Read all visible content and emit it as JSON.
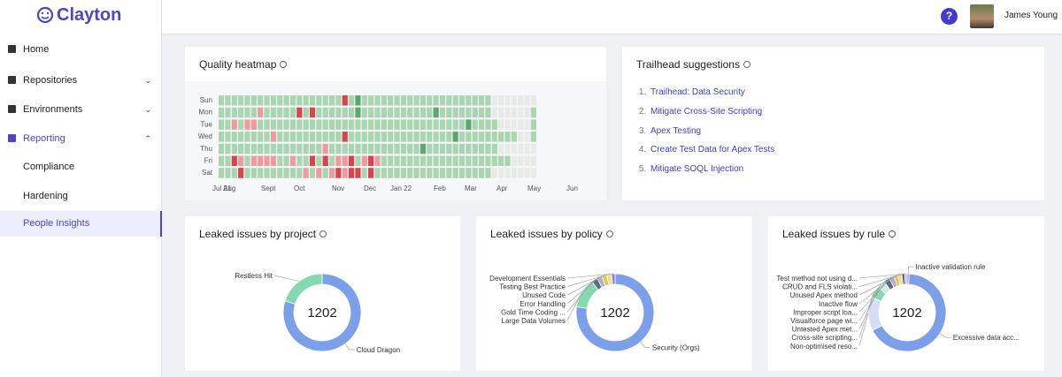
{
  "sidebar": {
    "logo": "Clayton",
    "nav": [
      {
        "label": "Home"
      },
      {
        "label": "Repositories"
      },
      {
        "label": "Environments"
      },
      {
        "label": "Reporting",
        "children": [
          "Compliance",
          "Hardening",
          "People Insights"
        ]
      }
    ]
  },
  "header": {
    "help": "?",
    "user": "James Young"
  },
  "heatmap": {
    "title": "Quality heatmap",
    "days": [
      "Sun",
      "Mon",
      "Tue",
      "Wed",
      "Thu",
      "Fri",
      "Sat"
    ],
    "months": [
      "Jul 21",
      "Aug",
      "Sept",
      "Oct",
      "Nov",
      "Dec",
      "Jan 22",
      "Feb",
      "Mar",
      "Apr",
      "May",
      "Jun"
    ],
    "color_scale": {
      "-2": "#d9434b",
      "-1": "#ef9a9c",
      "0": "#e8eae8",
      "1": "#a9d6b1",
      "2": "#5ba86b"
    },
    "rows": [
      [
        1,
        1,
        1,
        1,
        1,
        1,
        1,
        1,
        1,
        1,
        1,
        1,
        1,
        1,
        1,
        1,
        1,
        1,
        1,
        -2,
        1,
        2,
        1,
        1,
        1,
        1,
        1,
        1,
        1,
        1,
        1,
        1,
        1,
        1,
        1,
        1,
        1,
        1,
        1,
        1,
        1,
        1,
        0,
        0,
        0,
        0,
        0,
        0,
        0
      ],
      [
        1,
        1,
        1,
        1,
        1,
        1,
        -1,
        1,
        1,
        1,
        1,
        1,
        -2,
        1,
        -2,
        1,
        1,
        1,
        1,
        1,
        1,
        2,
        1,
        1,
        1,
        1,
        1,
        1,
        1,
        1,
        1,
        1,
        1,
        2,
        1,
        1,
        1,
        1,
        1,
        1,
        1,
        1,
        0,
        0,
        0,
        0,
        0,
        0,
        1
      ],
      [
        1,
        1,
        -1,
        1,
        -1,
        -1,
        1,
        1,
        1,
        1,
        1,
        1,
        1,
        1,
        1,
        1,
        1,
        1,
        1,
        1,
        1,
        1,
        1,
        1,
        1,
        1,
        1,
        1,
        1,
        1,
        1,
        1,
        1,
        1,
        1,
        1,
        1,
        1,
        2,
        1,
        1,
        1,
        1,
        0,
        0,
        0,
        0,
        0,
        1
      ],
      [
        1,
        1,
        1,
        1,
        1,
        1,
        1,
        1,
        -1,
        1,
        1,
        1,
        1,
        1,
        1,
        1,
        1,
        1,
        1,
        -2,
        1,
        1,
        1,
        1,
        1,
        1,
        1,
        1,
        1,
        1,
        1,
        1,
        1,
        1,
        1,
        1,
        2,
        1,
        1,
        1,
        1,
        1,
        1,
        1,
        1,
        1,
        0,
        0,
        1
      ],
      [
        1,
        1,
        1,
        1,
        1,
        1,
        1,
        1,
        1,
        1,
        1,
        1,
        1,
        1,
        1,
        1,
        -1,
        1,
        1,
        1,
        1,
        1,
        1,
        1,
        1,
        1,
        1,
        1,
        1,
        1,
        1,
        2,
        1,
        1,
        1,
        1,
        1,
        1,
        1,
        1,
        1,
        1,
        1,
        0,
        0,
        0,
        0,
        0,
        0
      ],
      [
        1,
        1,
        -2,
        -1,
        1,
        -1,
        -1,
        -1,
        -1,
        1,
        1,
        -1,
        1,
        1,
        -2,
        1,
        -2,
        1,
        -1,
        -1,
        -2,
        1,
        -1,
        -2,
        -1,
        1,
        1,
        1,
        1,
        1,
        1,
        1,
        1,
        1,
        1,
        1,
        1,
        1,
        1,
        1,
        1,
        1,
        1,
        1,
        1,
        0,
        0,
        0,
        0
      ],
      [
        1,
        1,
        1,
        -2,
        1,
        1,
        1,
        1,
        1,
        1,
        1,
        1,
        1,
        -1,
        1,
        -1,
        1,
        -1,
        -2,
        -1,
        -2,
        -2,
        1,
        -2,
        1,
        1,
        1,
        1,
        1,
        1,
        1,
        1,
        1,
        1,
        1,
        1,
        1,
        1,
        1,
        1,
        1,
        1,
        0,
        0,
        0,
        0,
        0,
        0,
        0
      ]
    ]
  },
  "trailhead": {
    "title": "Trailhead suggestions",
    "items": [
      "Trailhead: Data Security",
      "Mitigate Cross-Site Scripting",
      "Apex Testing",
      "Create Test Data for Apex Tests",
      "Mitigate SOQL Injection"
    ]
  },
  "donuts": [
    {
      "type": "pie",
      "title": "Leaked issues by project",
      "total": 1202,
      "categories": [
        "Cloud Dragon",
        "Restless Hit"
      ],
      "values": [
        960,
        242
      ],
      "colors": [
        "#7b9fe9",
        "#84d9b0"
      ]
    },
    {
      "type": "pie",
      "title": "Leaked issues by policy",
      "total": 1202,
      "categories": [
        "Security (Orgs)",
        "Large Data Volumes",
        "Gold Time Coding ...",
        "Error Handling",
        "Unused Code",
        "Testing Best Practice",
        "Development Essentials"
      ],
      "values": [
        930,
        150,
        30,
        25,
        25,
        25,
        17
      ],
      "colors": [
        "#7b9fe9",
        "#84d9b0",
        "#5c6886",
        "#a9b3c9",
        "#e9c25c",
        "#f2dc94",
        "#8a7fe2"
      ]
    },
    {
      "type": "pie",
      "title": "Leaked issues by rule",
      "total": 1202,
      "categories": [
        "Inactive validation rule",
        "Excessive data acc...",
        "Non-optimised reso...",
        "Cross-site scripting...",
        "Untested Apex met...",
        "Visualforce page wi...",
        "Improper script loa...",
        "Inactive flow",
        "Unused Apex method",
        "CRUD and FLS violati...",
        "Test method not using d..."
      ],
      "values": [
        10,
        800,
        170,
        60,
        40,
        30,
        25,
        20,
        20,
        15,
        12
      ],
      "colors": [
        "#8a7fe2",
        "#7b9fe9",
        "#d6dcf5",
        "#84d9b0",
        "#c9ecdc",
        "#5c6886",
        "#a9b3c9",
        "#e9c25c",
        "#f2dc94",
        "#5c6886",
        "#b9b1f0"
      ]
    }
  ]
}
